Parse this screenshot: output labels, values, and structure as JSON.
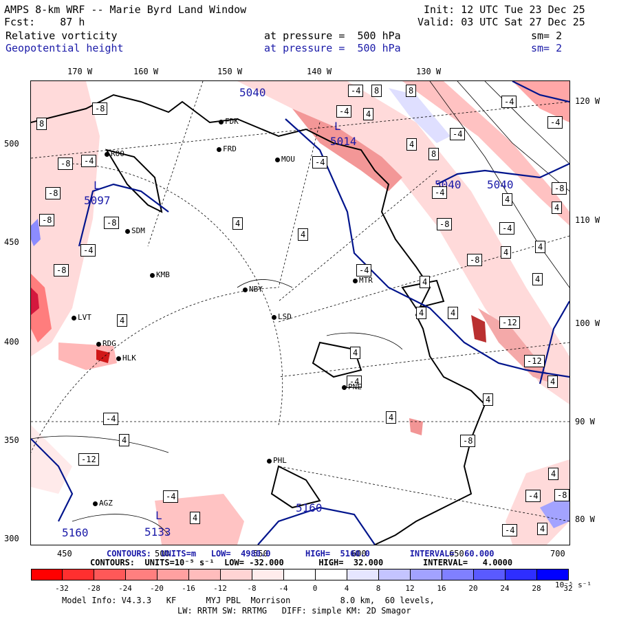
{
  "header": {
    "title": "AMPS 8-km WRF -- Marie Byrd Land Window",
    "init": "Init: 12 UTC Tue 23 Dec 25",
    "fcst": "Fcst:    87 h",
    "valid": "Valid: 03 UTC Sat 27 Dec 25",
    "field1": "Relative vorticity",
    "field1_level": "at pressure =  500 hPa",
    "field1_sm": "sm= 2",
    "field2": "Geopotential height",
    "field2_level": "at pressure =  500 hPa",
    "field2_sm": "sm= 2"
  },
  "axes": {
    "top_lon": [
      "170 W",
      "160 W",
      "150 W",
      "140 W",
      "130 W"
    ],
    "right_lon": [
      "120 W",
      "110 W",
      "100 W",
      "90 W",
      "80 W"
    ],
    "left_y": [
      "500",
      "450",
      "400",
      "350",
      "300"
    ],
    "bottom_x": [
      "450",
      "500",
      "550",
      "600",
      "650",
      "700"
    ]
  },
  "stations": [
    "FDK",
    "FRD",
    "MOU",
    "ROO",
    "SDM",
    "KMB",
    "NBY",
    "MTR",
    "LSD",
    "LVT",
    "RDG",
    "HLK",
    "PNE",
    "PHL",
    "AGZ"
  ],
  "map_labels": {
    "height_values": [
      "5040",
      "5040",
      "5040",
      "5160",
      "5160"
    ],
    "lows": [
      {
        "letter": "L",
        "value": "5014"
      },
      {
        "letter": "L",
        "value": "5097"
      },
      {
        "letter": "L",
        "value": "5133"
      }
    ],
    "vort_boxes": [
      "-4",
      "8",
      "8",
      "-4",
      "-8",
      "-4",
      "4",
      "8",
      "4",
      "8",
      "-4",
      "-4",
      "-4",
      "-8",
      "-4",
      "-8",
      "-8",
      "-4",
      "4",
      "4",
      "-8",
      "4",
      "4",
      "-4",
      "-8",
      "-8",
      "4",
      "-4",
      "-8",
      "4",
      "-4",
      "4",
      "-8",
      "4",
      "4",
      "4",
      "4",
      "-12",
      "-12",
      "4",
      "4",
      "-4",
      "4",
      "-4",
      "4",
      "4",
      "-8",
      "-12",
      "4",
      "-4",
      "-4",
      "-8",
      "4",
      "4",
      "-4",
      "-8",
      "-4",
      "-8"
    ]
  },
  "contour_info": {
    "line1": "CONTOURS:  UNITS=m   LOW=  4980.0       HIGH=  5160.0        INTERVAL=  60.000",
    "line2": "CONTOURS:  UNITS=10⁻⁵ s⁻¹  LOW= -32.000       HIGH=  32.000        INTERVAL=   4.0000"
  },
  "colorbar": {
    "ticks": [
      "-32",
      "-28",
      "-24",
      "-20",
      "-16",
      "-12",
      "-8",
      "-4",
      "0",
      "4",
      "8",
      "12",
      "16",
      "20",
      "24",
      "28",
      "32"
    ],
    "unit": "10⁻⁵ s⁻¹",
    "colors": [
      "#ff0000",
      "#ff2f2f",
      "#ff5858",
      "#ff7f7f",
      "#ffa0a0",
      "#ffbcbc",
      "#ffd4d4",
      "#ffecec",
      "#ffffff",
      "#ffffff",
      "#e6e6ff",
      "#c4c4ff",
      "#a2a2ff",
      "#8080ff",
      "#5a5aff",
      "#2e2eff",
      "#0000ff"
    ]
  },
  "footer": {
    "model": "Model Info: V4.3.3   KF      MYJ PBL  Morrison          8.0 km,  60 levels,",
    "physics": "LW: RRTM SW: RRTMG   DIFF: simple KM: 2D Smagor"
  }
}
